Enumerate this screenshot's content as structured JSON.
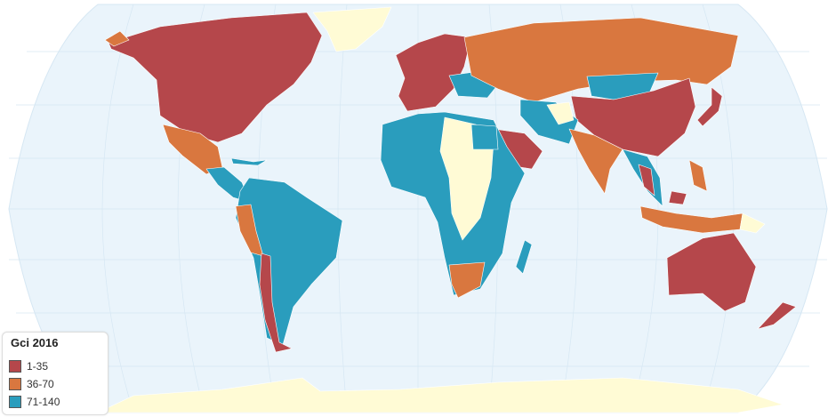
{
  "legend": {
    "title": "Gci 2016",
    "items": [
      {
        "label": "1-35",
        "color": "#b5474b"
      },
      {
        "label": "36-70",
        "color": "#d9773f"
      },
      {
        "label": "71-140",
        "color": "#2a9dbd"
      }
    ]
  },
  "colors": {
    "ocean": "#eaf4fb",
    "no_data": "#fffbd5",
    "graticule": "#d6e7f3"
  },
  "projection": "robinson"
}
